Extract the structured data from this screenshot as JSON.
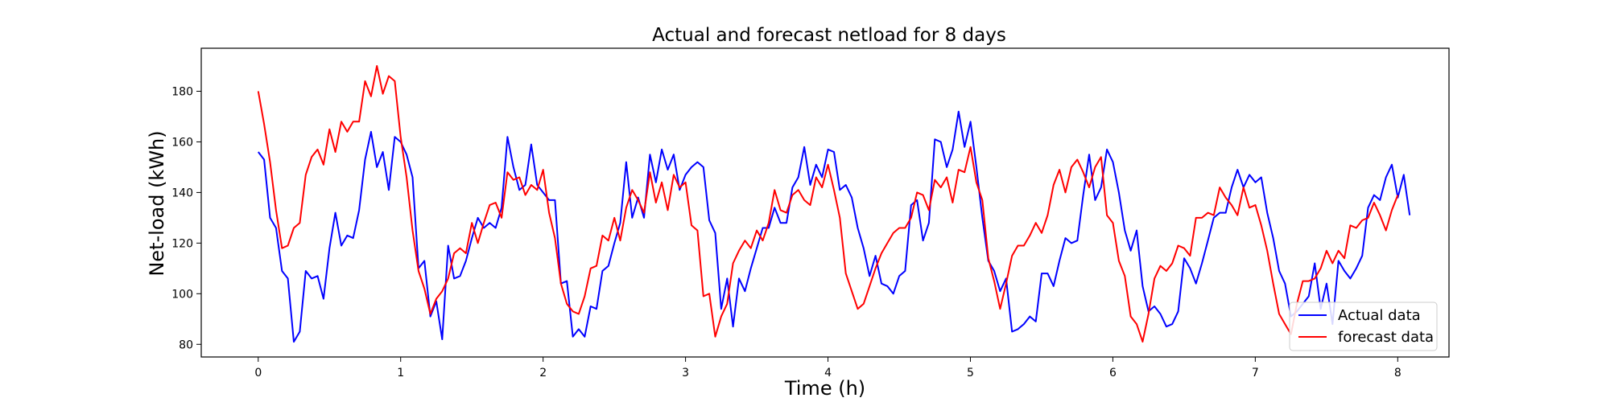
{
  "chart_data": {
    "type": "line",
    "title": "Actual and forecast netload for 8 days",
    "xlabel": "Time (h)",
    "ylabel": "Net-load (kWh)",
    "xlim": [
      -0.4,
      8.36
    ],
    "ylim": [
      75,
      197
    ],
    "xticks": [
      0,
      1,
      2,
      3,
      4,
      5,
      6,
      7,
      8
    ],
    "yticks": [
      80,
      100,
      120,
      140,
      160,
      180
    ],
    "grid": false,
    "legend_position": "lower-right",
    "x_step": 0.04167,
    "series": [
      {
        "name": "Actual data",
        "color": "#0000ff",
        "values": [
          156,
          153,
          130,
          126,
          109,
          106,
          81,
          85,
          109,
          106,
          107,
          98,
          118,
          132,
          119,
          123,
          122,
          133,
          153,
          164,
          150,
          156,
          141,
          162,
          160,
          155,
          146,
          110,
          113,
          91,
          97,
          82,
          119,
          106,
          107,
          113,
          122,
          130,
          126,
          128,
          126,
          134,
          162,
          150,
          141,
          143,
          159,
          143,
          140,
          137,
          137,
          104,
          105,
          83,
          86,
          83,
          95,
          94,
          109,
          111,
          120,
          128,
          152,
          130,
          138,
          130,
          155,
          144,
          157,
          149,
          155,
          141,
          147,
          150,
          152,
          150,
          129,
          124,
          94,
          106,
          87,
          106,
          101,
          110,
          118,
          126,
          126,
          134,
          128,
          128,
          142,
          146,
          158,
          143,
          151,
          146,
          157,
          156,
          141,
          143,
          138,
          126,
          118,
          107,
          115,
          104,
          103,
          100,
          107,
          109,
          135,
          137,
          121,
          128,
          161,
          160,
          150,
          157,
          172,
          158,
          168,
          150,
          130,
          113,
          109,
          101,
          106,
          85,
          86,
          88,
          91,
          89,
          108,
          108,
          103,
          113,
          122,
          120,
          121,
          139,
          155,
          137,
          142,
          157,
          152,
          140,
          125,
          117,
          125,
          103,
          93,
          95,
          92,
          87,
          88,
          93,
          114,
          110,
          104,
          112,
          121,
          130,
          132,
          132,
          142,
          149,
          142,
          147,
          144,
          146,
          132,
          122,
          109,
          104,
          91,
          93,
          96,
          99,
          112,
          94,
          104,
          88,
          113,
          109,
          106,
          110,
          115,
          134,
          139,
          137,
          146,
          151,
          138,
          147,
          131
        ]
      },
      {
        "name": "forecast data",
        "color": "#ff0000",
        "values": [
          180,
          167,
          152,
          133,
          118,
          119,
          126,
          128,
          147,
          154,
          157,
          151,
          165,
          156,
          168,
          164,
          168,
          168,
          184,
          178,
          190,
          179,
          186,
          184,
          162,
          146,
          125,
          109,
          102,
          92,
          98,
          101,
          106,
          116,
          118,
          116,
          128,
          120,
          128,
          135,
          136,
          130,
          148,
          145,
          146,
          139,
          143,
          141,
          149,
          132,
          122,
          104,
          96,
          93,
          92,
          99,
          110,
          111,
          123,
          121,
          130,
          121,
          134,
          141,
          137,
          132,
          148,
          136,
          144,
          133,
          147,
          142,
          144,
          127,
          125,
          99,
          100,
          83,
          91,
          96,
          112,
          117,
          121,
          118,
          125,
          121,
          128,
          141,
          133,
          132,
          139,
          141,
          137,
          135,
          146,
          142,
          151,
          141,
          130,
          108,
          101,
          94,
          96,
          103,
          110,
          116,
          120,
          124,
          126,
          126,
          130,
          140,
          139,
          133,
          145,
          142,
          146,
          136,
          149,
          148,
          158,
          144,
          137,
          114,
          105,
          94,
          104,
          115,
          119,
          119,
          123,
          128,
          124,
          131,
          143,
          149,
          140,
          150,
          153,
          148,
          142,
          150,
          154,
          131,
          128,
          113,
          107,
          91,
          88,
          81,
          92,
          106,
          111,
          109,
          112,
          119,
          118,
          115,
          130,
          130,
          132,
          131,
          142,
          138,
          135,
          131,
          142,
          134,
          135,
          127,
          117,
          104,
          92,
          88,
          84,
          96,
          105,
          105,
          106,
          110,
          117,
          112,
          117,
          114,
          127,
          126,
          129,
          130,
          136,
          131,
          125,
          133,
          139
        ]
      }
    ]
  }
}
